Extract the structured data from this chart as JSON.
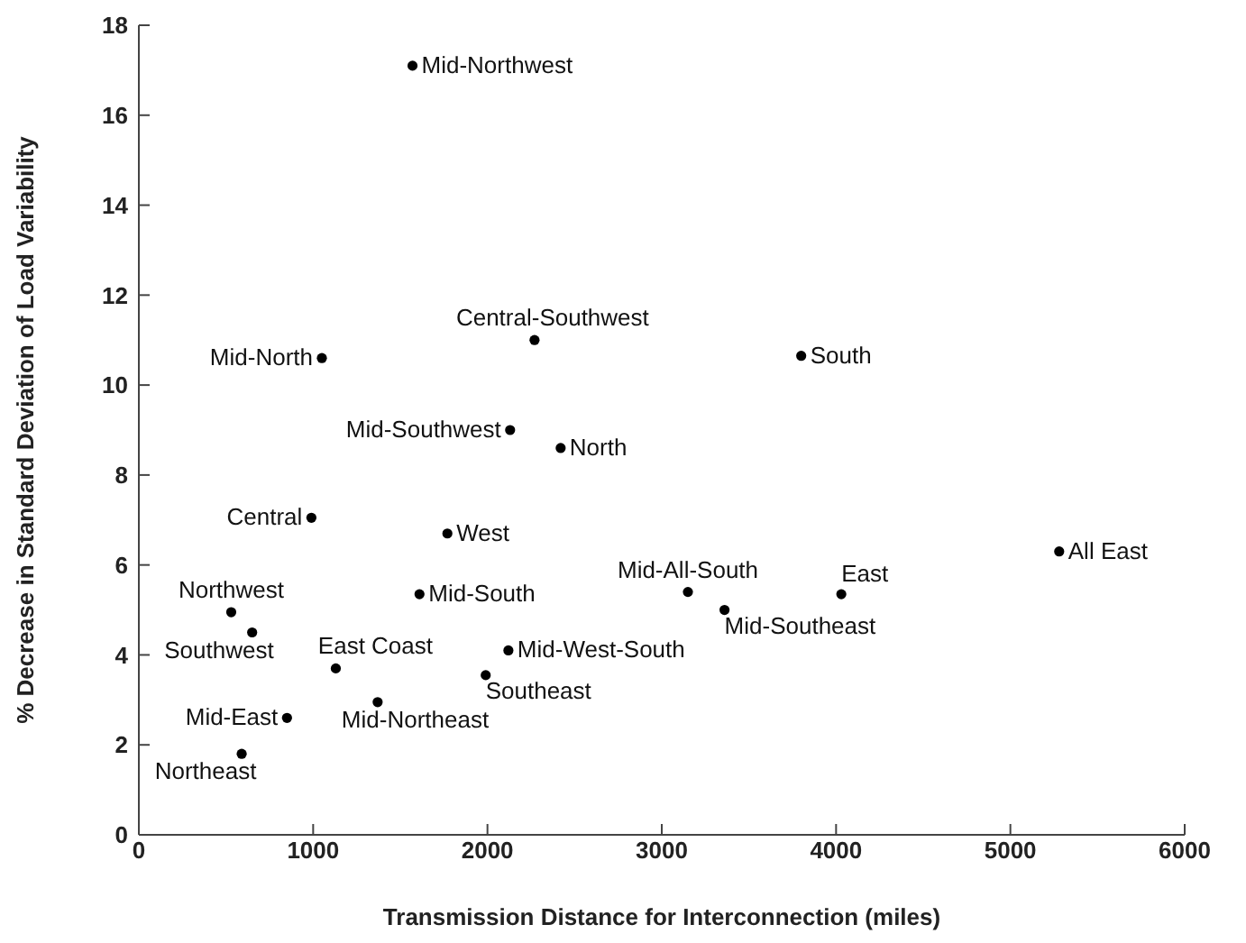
{
  "chart_data": {
    "type": "scatter",
    "xlabel": "Transmission Distance for Interconnection (miles)",
    "ylabel": "% Decrease in Standard Deviation of Load Variability",
    "xlim": [
      0,
      6000
    ],
    "xticks": [
      0,
      1000,
      2000,
      3000,
      4000,
      5000,
      6000
    ],
    "ylim": [
      0,
      18
    ],
    "yticks": [
      0,
      2,
      4,
      6,
      8,
      10,
      12,
      14,
      16,
      18
    ],
    "grid": false,
    "legend": false,
    "marker": "circle",
    "series": [
      {
        "color": "#000000",
        "x": [
          1570,
          2270,
          1050,
          3800,
          5280,
          3150,
          4030,
          3360,
          2130,
          2420,
          990,
          1770,
          1610,
          530,
          650,
          2120,
          1130,
          1990,
          1370,
          850,
          590
        ],
        "values": [
          17.1,
          11.0,
          10.6,
          10.65,
          6.3,
          5.4,
          5.35,
          5.0,
          9.0,
          8.6,
          7.05,
          6.7,
          5.35,
          4.95,
          4.5,
          4.1,
          3.7,
          3.55,
          2.95,
          2.6,
          1.8
        ]
      }
    ],
    "annotations": [
      {
        "text": "Mid-Northwest",
        "x": 1570,
        "y": 17.1
      },
      {
        "text": "Central-Southwest",
        "x": 2270,
        "y": 11.0
      },
      {
        "text": "Mid-North",
        "x": 1050,
        "y": 10.6
      },
      {
        "text": "South",
        "x": 3800,
        "y": 10.65
      },
      {
        "text": "All East",
        "x": 5280,
        "y": 6.3
      },
      {
        "text": "Mid-All-South",
        "x": 3150,
        "y": 5.4
      },
      {
        "text": "East",
        "x": 4030,
        "y": 5.35
      },
      {
        "text": "Mid-Southeast",
        "x": 3360,
        "y": 5.0
      },
      {
        "text": "Mid-Southwest",
        "x": 2130,
        "y": 9.0
      },
      {
        "text": "North",
        "x": 2420,
        "y": 8.6
      },
      {
        "text": "Central",
        "x": 990,
        "y": 7.05
      },
      {
        "text": "West",
        "x": 1770,
        "y": 6.7
      },
      {
        "text": "Mid-South",
        "x": 1610,
        "y": 5.35
      },
      {
        "text": "Northwest",
        "x": 530,
        "y": 4.95
      },
      {
        "text": "Southwest",
        "x": 650,
        "y": 4.5
      },
      {
        "text": "Mid-West-South",
        "x": 2120,
        "y": 4.1
      },
      {
        "text": "East Coast",
        "x": 1130,
        "y": 3.7
      },
      {
        "text": "Southeast",
        "x": 1990,
        "y": 3.55
      },
      {
        "text": "Mid-Northeast",
        "x": 1370,
        "y": 2.95
      },
      {
        "text": "Mid-East",
        "x": 850,
        "y": 2.6
      },
      {
        "text": "Northeast",
        "x": 590,
        "y": 1.8
      }
    ]
  }
}
